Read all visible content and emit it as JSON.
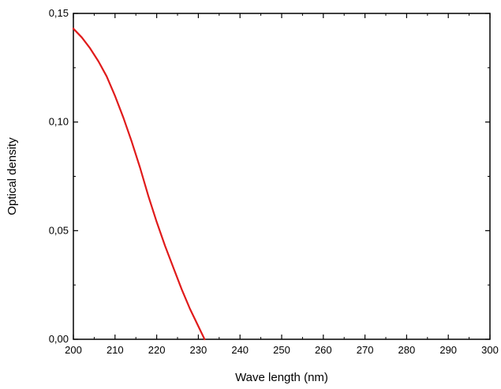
{
  "chart_data": {
    "type": "line",
    "title": "",
    "xlabel": "Wave length (nm)",
    "ylabel": "Optical density",
    "xlim": [
      200,
      300
    ],
    "ylim": [
      0,
      0.15
    ],
    "grid": false,
    "legend": "none",
    "x_ticks": [
      "200",
      "210",
      "220",
      "230",
      "240",
      "250",
      "260",
      "270",
      "280",
      "290",
      "300"
    ],
    "y_ticks": [
      "0,00",
      "0,05",
      "0,10",
      "0,15"
    ],
    "series": [
      {
        "color": "#e01b1b",
        "x": [
          200,
          202,
          204,
          206,
          208,
          210,
          212,
          214,
          216,
          218,
          220,
          222,
          224,
          226,
          228,
          230,
          231.5
        ],
        "y": [
          0.143,
          0.139,
          0.134,
          0.128,
          0.121,
          0.112,
          0.102,
          0.091,
          0.079,
          0.066,
          0.054,
          0.043,
          0.033,
          0.023,
          0.014,
          0.006,
          0.0
        ]
      }
    ]
  }
}
